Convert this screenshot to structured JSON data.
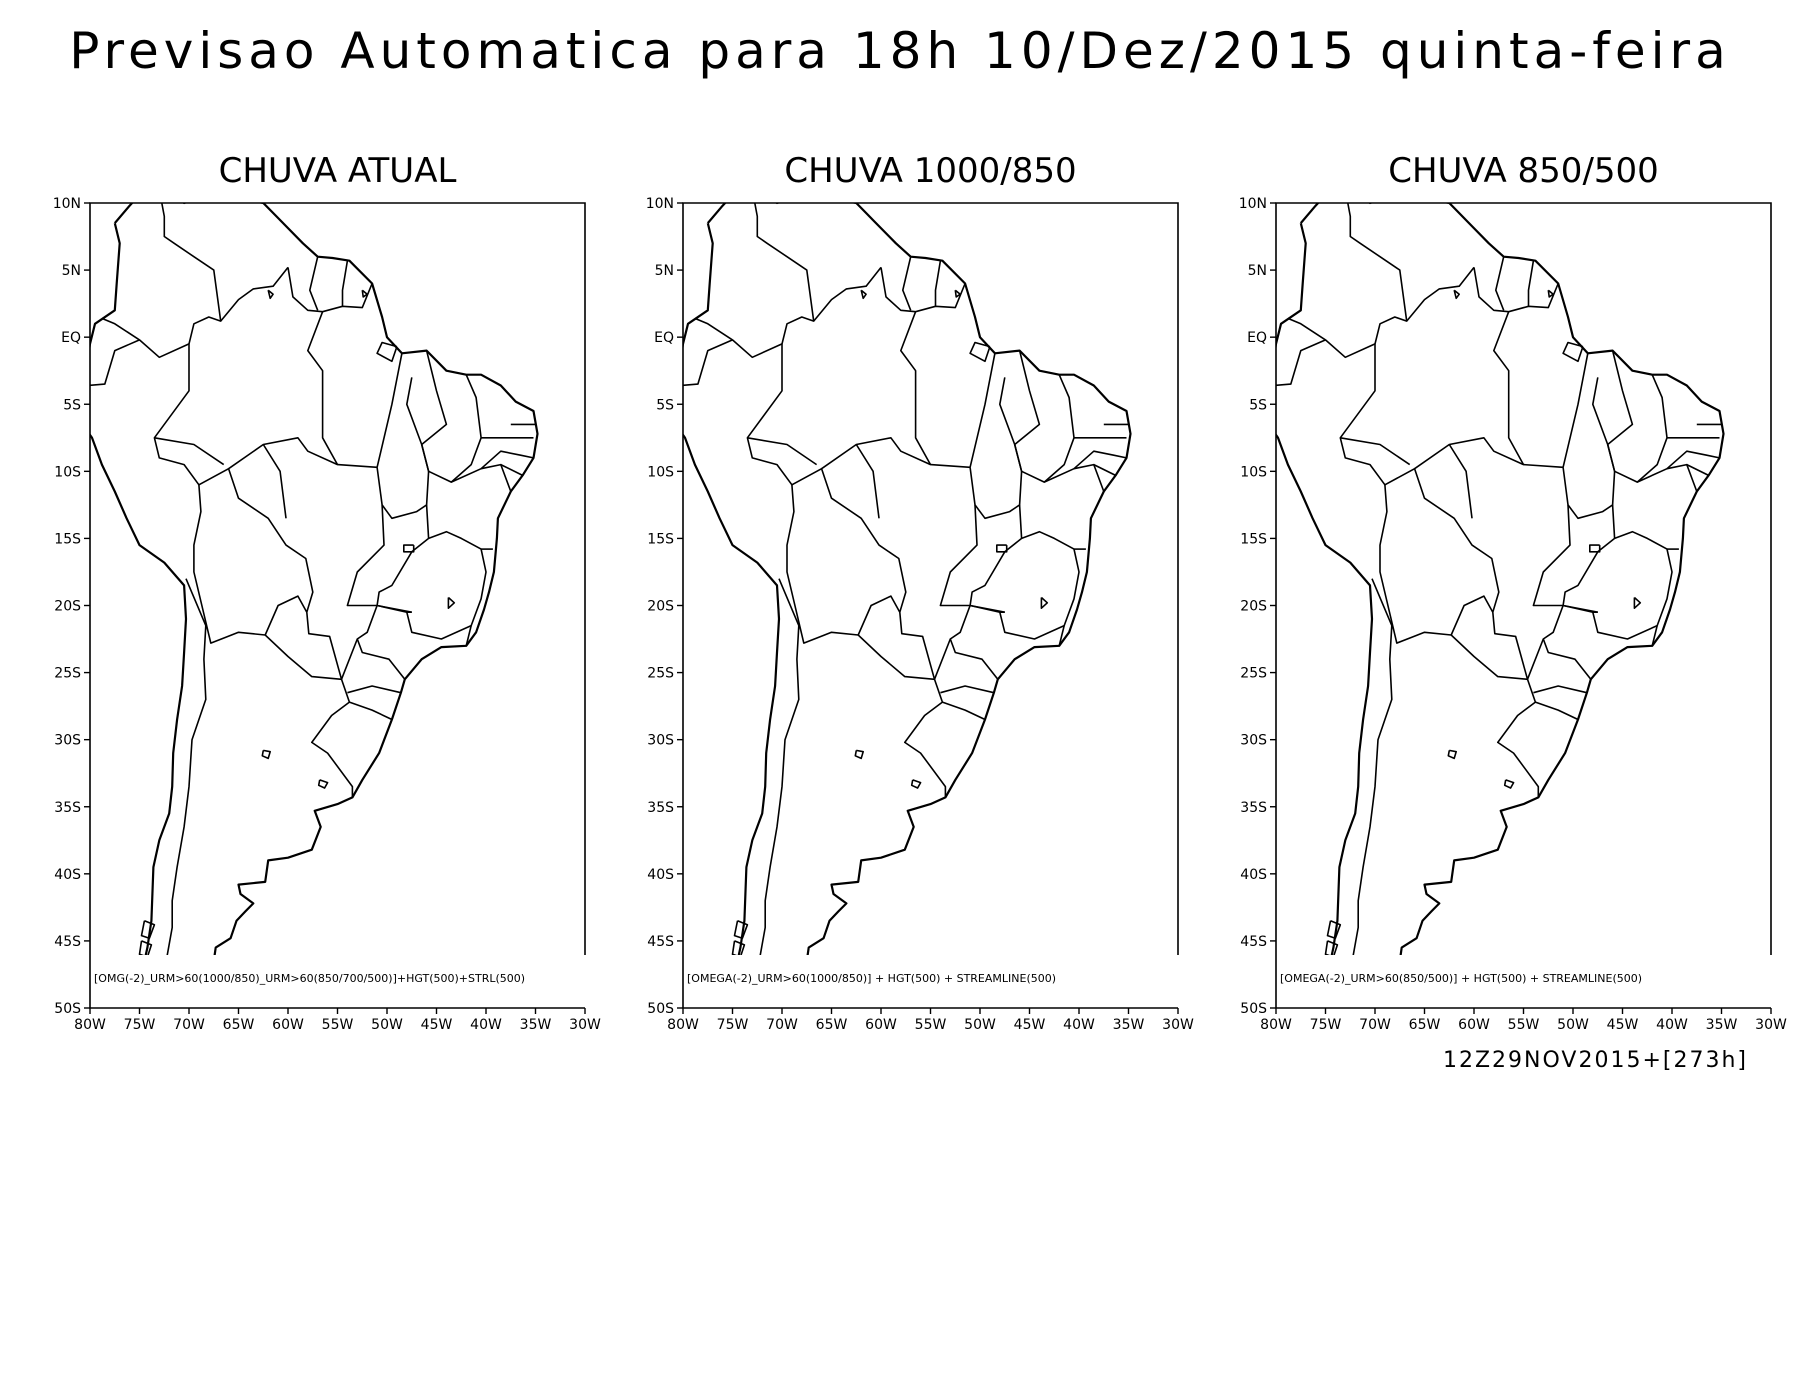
{
  "title": "Previsao Automatica para 18h 10/Dez/2015 quinta-feira",
  "run_label": "12Z29NOV2015+[273h]",
  "map_extent": {
    "lon": [
      -80,
      -30
    ],
    "lat": [
      -50,
      10
    ]
  },
  "lat_tick_values": [
    10,
    5,
    0,
    -5,
    -10,
    -15,
    -20,
    -25,
    -30,
    -35,
    -40,
    -45,
    -50
  ],
  "lat_ticks": [
    "10N",
    "5N",
    "EQ",
    "5S",
    "10S",
    "15S",
    "20S",
    "25S",
    "30S",
    "35S",
    "40S",
    "45S",
    "50S"
  ],
  "lon_tick_values": [
    -80,
    -75,
    -70,
    -65,
    -60,
    -55,
    -50,
    -45,
    -40,
    -35,
    -30
  ],
  "lon_ticks": [
    "80W",
    "75W",
    "70W",
    "65W",
    "60W",
    "55W",
    "50W",
    "45W",
    "40W",
    "35W",
    "30W"
  ],
  "panels": [
    {
      "title": "CHUVA ATUAL",
      "caption": "[OMG(-2)_URM>60(1000/850)_URM>60(850/700/500)]+HGT(500)+STRL(500)"
    },
    {
      "title": "CHUVA 1000/850",
      "caption": "[OMEGA(-2)_URM>60(1000/850)] + HGT(500) + STREAMLINE(500)"
    },
    {
      "title": "CHUVA 850/500",
      "caption": "[OMEGA(-2)_URM>60(850/500)] + HGT(500) + STREAMLINE(500)"
    }
  ],
  "colors": {
    "lines": "#000000",
    "background": "#ffffff"
  }
}
